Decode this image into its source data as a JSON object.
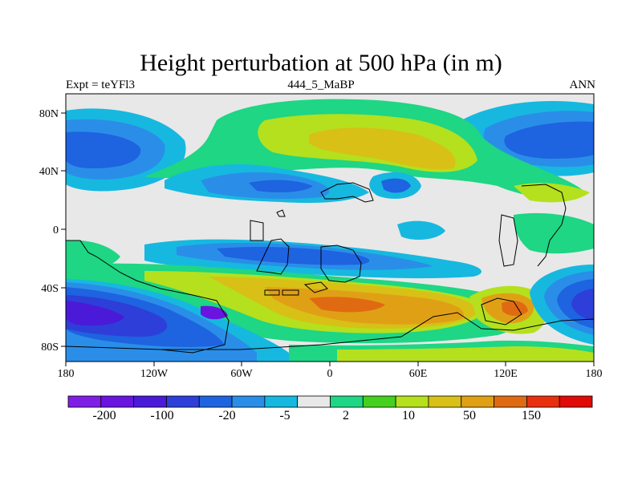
{
  "title": "Height perturbation at 500 hPa (in m)",
  "subtitle_left": "Expt = teYFl3",
  "subtitle_center": "444_5_MaBP",
  "subtitle_right": "ANN",
  "map": {
    "lat_ticks": [
      "80N",
      "40N",
      "0",
      "40S",
      "80S"
    ],
    "lon_ticks": [
      "180",
      "120W",
      "60W",
      "0",
      "60E",
      "120E",
      "180"
    ],
    "neutral_color": "#e8e8e8"
  },
  "colorbar": {
    "colors": [
      "#7f1fe6",
      "#6a14e0",
      "#4a1ad8",
      "#2d3fd8",
      "#1e63e0",
      "#2a8ee8",
      "#16b8e0",
      "#e8e8e8",
      "#1ed684",
      "#45d01e",
      "#b4e01e",
      "#d8c016",
      "#e0a016",
      "#e06a12",
      "#e8300e",
      "#e00a06"
    ],
    "labels": [
      "-200",
      "-100",
      "-20",
      "-5",
      "2",
      "10",
      "50",
      "150"
    ]
  }
}
